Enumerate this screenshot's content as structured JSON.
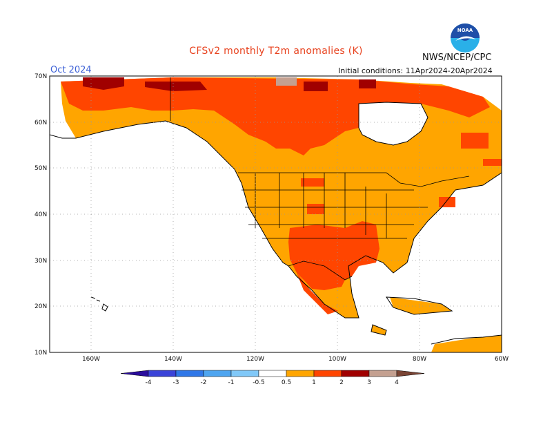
{
  "title": "CFSv2 monthly T2m anomalies (K)",
  "agency": "NWS/NCEP/CPC",
  "period": "Oct 2024",
  "initial_conditions": "Initial conditions: 11Apr2024-20Apr2024",
  "logo": {
    "icon": "noaa-logo-icon",
    "text": "NOAA",
    "colors": {
      "sky": "#1f4fa8",
      "bird": "#ffffff",
      "sea": "#2ab0e8"
    }
  },
  "map": {
    "projection": "lat-lon",
    "lon_range": [
      -170,
      -60
    ],
    "lat_range": [
      10,
      70
    ],
    "lat_ticks": [
      "10N",
      "20N",
      "30N",
      "40N",
      "50N",
      "60N",
      "70N"
    ],
    "lon_ticks": [
      "160W",
      "140W",
      "120W",
      "100W",
      "80W",
      "60W"
    ],
    "grid": "dotted",
    "colors": {
      "land_outline": "#000000",
      "grid": "#999999",
      "plus_05_1": "#ffa500",
      "plus_1_2": "#ff4500",
      "plus_2_3": "#a00000",
      "plus_3_4": "#c4a090"
    }
  },
  "colorbar": {
    "labels": [
      "-4",
      "-3",
      "-2",
      "-1",
      "-0.5",
      "0.5",
      "1",
      "2",
      "3",
      "4"
    ],
    "colors": [
      "#2a0d9c",
      "#3a43d8",
      "#2f77e8",
      "#4ea5f0",
      "#80c8f8",
      "#ffffff",
      "#ffa500",
      "#ff4500",
      "#a00000",
      "#c4a090",
      "#7a4535"
    ]
  }
}
